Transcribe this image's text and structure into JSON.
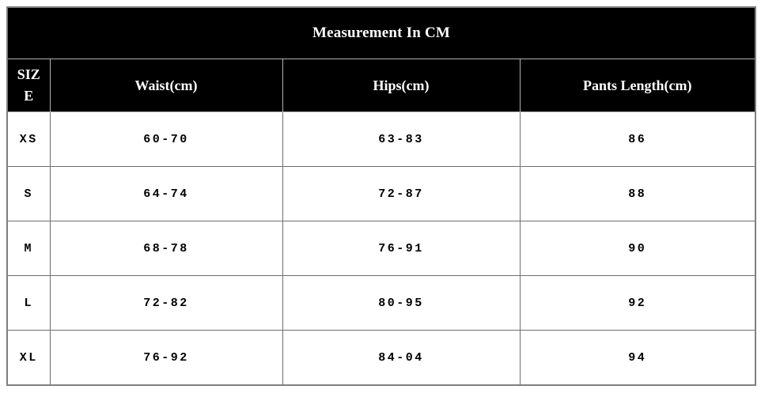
{
  "table": {
    "title": "Measurement In CM",
    "columns": [
      "SIZE",
      "Waist(cm)",
      "Hips(cm)",
      "Pants Length(cm)"
    ],
    "rows": [
      {
        "size": "XS",
        "waist": "60-70",
        "hips": "63-83",
        "pants_length": "86"
      },
      {
        "size": "S",
        "waist": "64-74",
        "hips": "72-87",
        "pants_length": "88"
      },
      {
        "size": "M",
        "waist": "68-78",
        "hips": "76-91",
        "pants_length": "90"
      },
      {
        "size": "L",
        "waist": "72-82",
        "hips": "80-95",
        "pants_length": "92"
      },
      {
        "size": "XL",
        "waist": "76-92",
        "hips": "84-04",
        "pants_length": "94"
      }
    ],
    "colors": {
      "header_bg": "#000000",
      "header_text": "#ffffff",
      "body_bg": "#ffffff",
      "body_text": "#000000",
      "border": "#7f7f7f"
    }
  }
}
